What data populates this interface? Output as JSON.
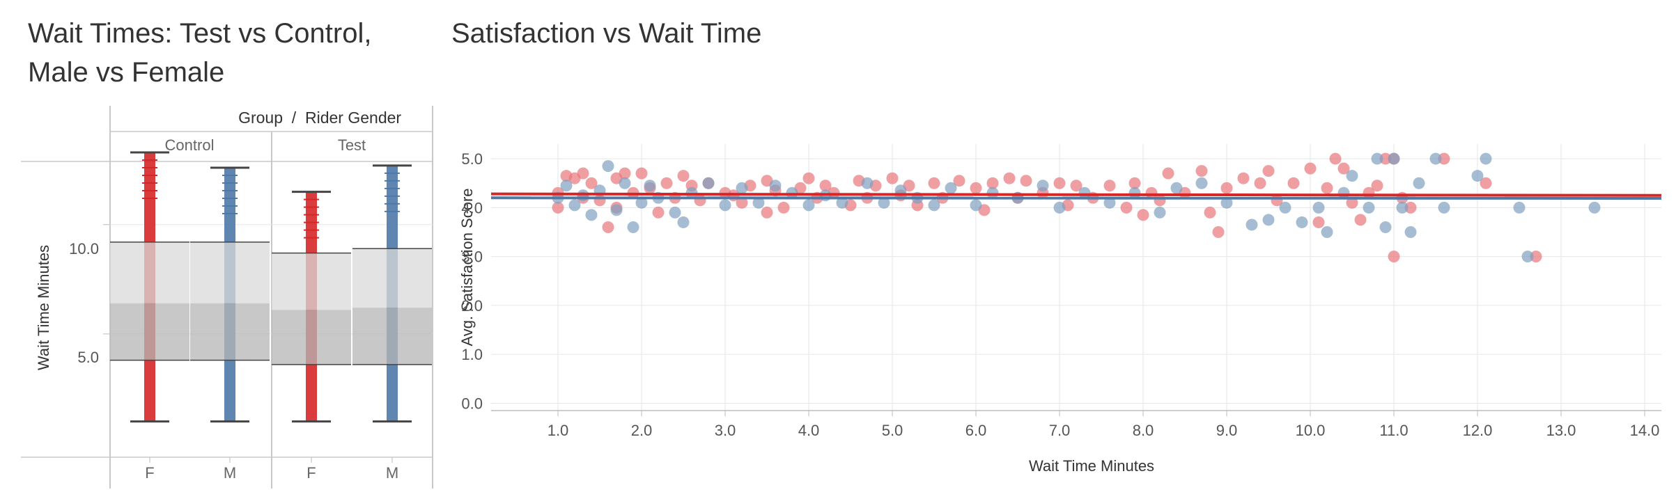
{
  "colors": {
    "female": "#d62728",
    "male": "#4e79a7",
    "grid": "#e6e6e6",
    "axis": "#bdbdbd",
    "text": "#333333",
    "tick": "#555555"
  },
  "left_title_line1": "Wait Times: Test vs Control,",
  "left_title_line2": "Male vs Female",
  "right_title": "Satisfaction vs Wait Time",
  "chart_data": [
    {
      "type": "box",
      "header": "Group",
      "header_sep": "/",
      "header2": "Rider Gender",
      "groups": [
        "Control",
        "Test"
      ],
      "genders": [
        "F",
        "M"
      ],
      "ylabel": "Wait Time Minutes",
      "yticks": [
        "5.0",
        "10.0"
      ],
      "ylim": [
        0,
        14
      ],
      "boxes": [
        {
          "group": "Control",
          "gender": "F",
          "min": 1.0,
          "q1": 3.8,
          "median": 6.4,
          "q3": 9.2,
          "max": 13.3
        },
        {
          "group": "Control",
          "gender": "M",
          "min": 1.0,
          "q1": 3.8,
          "median": 6.4,
          "q3": 9.2,
          "max": 12.6
        },
        {
          "group": "Test",
          "gender": "F",
          "min": 1.0,
          "q1": 3.6,
          "median": 6.1,
          "q3": 8.7,
          "max": 11.5
        },
        {
          "group": "Test",
          "gender": "M",
          "min": 1.0,
          "q1": 3.6,
          "median": 6.2,
          "q3": 8.9,
          "max": 12.7
        }
      ]
    },
    {
      "type": "scatter",
      "xlabel": "Wait Time Minutes",
      "ylabel": "Avg. Satisfaction Score",
      "xlim": [
        0.2,
        14.2
      ],
      "ylim": [
        -0.15,
        5.3
      ],
      "xticks": [
        "1.0",
        "2.0",
        "3.0",
        "4.0",
        "5.0",
        "6.0",
        "7.0",
        "8.0",
        "9.0",
        "10.0",
        "11.0",
        "12.0",
        "13.0",
        "14.0"
      ],
      "yticks": [
        "0.0",
        "1.0",
        "2.0",
        "3.0",
        "4.0",
        "5.0"
      ],
      "trend_lines": [
        {
          "series": "female",
          "x": [
            0.2,
            14.2
          ],
          "y": [
            4.28,
            4.25
          ]
        },
        {
          "series": "male",
          "x": [
            0.2,
            14.2
          ],
          "y": [
            4.2,
            4.19
          ]
        }
      ],
      "series": [
        {
          "key": "female",
          "points": [
            [
              1,
              4.3
            ],
            [
              1,
              4.0
            ],
            [
              1.1,
              4.65
            ],
            [
              1.2,
              4.6
            ],
            [
              1.3,
              4.7
            ],
            [
              1.3,
              4.2
            ],
            [
              1.4,
              4.5
            ],
            [
              1.5,
              4.15
            ],
            [
              1.6,
              3.6
            ],
            [
              1.7,
              4.0
            ],
            [
              1.7,
              4.6
            ],
            [
              1.8,
              4.7
            ],
            [
              1.9,
              4.3
            ],
            [
              2.0,
              4.7
            ],
            [
              2.1,
              4.4
            ],
            [
              2.2,
              3.9
            ],
            [
              2.3,
              4.5
            ],
            [
              2.4,
              4.2
            ],
            [
              2.5,
              4.65
            ],
            [
              2.6,
              4.45
            ],
            [
              2.7,
              4.15
            ],
            [
              2.8,
              4.5
            ],
            [
              3.0,
              4.3
            ],
            [
              3.1,
              4.25
            ],
            [
              3.2,
              4.1
            ],
            [
              3.3,
              4.45
            ],
            [
              3.5,
              4.55
            ],
            [
              3.5,
              3.9
            ],
            [
              3.6,
              4.35
            ],
            [
              3.7,
              4.0
            ],
            [
              3.9,
              4.4
            ],
            [
              4.0,
              4.6
            ],
            [
              4.1,
              4.2
            ],
            [
              4.2,
              4.45
            ],
            [
              4.3,
              4.3
            ],
            [
              4.5,
              4.05
            ],
            [
              4.6,
              4.55
            ],
            [
              4.7,
              4.2
            ],
            [
              4.8,
              4.45
            ],
            [
              5.0,
              4.6
            ],
            [
              5.1,
              4.25
            ],
            [
              5.2,
              4.45
            ],
            [
              5.3,
              4.05
            ],
            [
              5.5,
              4.5
            ],
            [
              5.6,
              4.2
            ],
            [
              5.8,
              4.55
            ],
            [
              6.0,
              4.4
            ],
            [
              6.1,
              3.95
            ],
            [
              6.2,
              4.5
            ],
            [
              6.4,
              4.6
            ],
            [
              6.5,
              4.2
            ],
            [
              6.6,
              4.55
            ],
            [
              6.8,
              4.3
            ],
            [
              7.0,
              4.5
            ],
            [
              7.1,
              4.05
            ],
            [
              7.2,
              4.45
            ],
            [
              7.4,
              4.2
            ],
            [
              7.6,
              4.45
            ],
            [
              7.8,
              4.0
            ],
            [
              7.9,
              4.5
            ],
            [
              8.0,
              3.85
            ],
            [
              8.1,
              4.3
            ],
            [
              8.2,
              4.15
            ],
            [
              8.3,
              4.7
            ],
            [
              8.5,
              4.3
            ],
            [
              8.7,
              4.75
            ],
            [
              8.8,
              3.9
            ],
            [
              8.9,
              3.5
            ],
            [
              9.0,
              4.4
            ],
            [
              9.2,
              4.6
            ],
            [
              9.4,
              4.5
            ],
            [
              9.5,
              4.75
            ],
            [
              9.6,
              4.15
            ],
            [
              9.8,
              4.5
            ],
            [
              10.0,
              4.8
            ],
            [
              10.1,
              3.7
            ],
            [
              10.2,
              4.4
            ],
            [
              10.3,
              5.0
            ],
            [
              10.4,
              4.8
            ],
            [
              10.5,
              4.1
            ],
            [
              10.6,
              3.75
            ],
            [
              10.7,
              4.3
            ],
            [
              10.8,
              4.45
            ],
            [
              10.9,
              5.0
            ],
            [
              11.0,
              3.0
            ],
            [
              11.0,
              5.0
            ],
            [
              11.1,
              4.2
            ],
            [
              11.2,
              4.0
            ],
            [
              11.6,
              5.0
            ],
            [
              12.1,
              4.5
            ],
            [
              12.7,
              3.0
            ]
          ]
        },
        {
          "key": "male",
          "points": [
            [
              1,
              4.2
            ],
            [
              1.1,
              4.45
            ],
            [
              1.2,
              4.05
            ],
            [
              1.3,
              4.25
            ],
            [
              1.4,
              3.85
            ],
            [
              1.5,
              4.35
            ],
            [
              1.6,
              4.85
            ],
            [
              1.7,
              3.95
            ],
            [
              1.8,
              4.5
            ],
            [
              1.9,
              3.6
            ],
            [
              2.0,
              4.1
            ],
            [
              2.1,
              4.45
            ],
            [
              2.2,
              4.2
            ],
            [
              2.4,
              3.9
            ],
            [
              2.5,
              3.7
            ],
            [
              2.6,
              4.3
            ],
            [
              2.8,
              4.5
            ],
            [
              3.0,
              4.05
            ],
            [
              3.2,
              4.4
            ],
            [
              3.4,
              4.1
            ],
            [
              3.6,
              4.45
            ],
            [
              3.8,
              4.3
            ],
            [
              4.0,
              4.05
            ],
            [
              4.2,
              4.25
            ],
            [
              4.4,
              4.1
            ],
            [
              4.7,
              4.5
            ],
            [
              4.9,
              4.1
            ],
            [
              5.1,
              4.35
            ],
            [
              5.3,
              4.2
            ],
            [
              5.5,
              4.05
            ],
            [
              5.7,
              4.4
            ],
            [
              6.0,
              4.05
            ],
            [
              6.2,
              4.3
            ],
            [
              6.5,
              4.2
            ],
            [
              6.8,
              4.45
            ],
            [
              7.0,
              4.0
            ],
            [
              7.3,
              4.3
            ],
            [
              7.6,
              4.1
            ],
            [
              7.9,
              4.3
            ],
            [
              8.2,
              3.9
            ],
            [
              8.4,
              4.4
            ],
            [
              8.7,
              4.5
            ],
            [
              9.0,
              4.1
            ],
            [
              9.3,
              3.65
            ],
            [
              9.5,
              3.75
            ],
            [
              9.7,
              4.0
            ],
            [
              9.9,
              3.7
            ],
            [
              10.1,
              4.0
            ],
            [
              10.2,
              3.5
            ],
            [
              10.4,
              4.3
            ],
            [
              10.5,
              4.65
            ],
            [
              10.7,
              4.0
            ],
            [
              10.8,
              5.0
            ],
            [
              10.9,
              3.6
            ],
            [
              11.0,
              5.0
            ],
            [
              11.1,
              4.0
            ],
            [
              11.2,
              3.5
            ],
            [
              11.3,
              4.5
            ],
            [
              11.5,
              5.0
            ],
            [
              11.6,
              4.0
            ],
            [
              12.0,
              4.65
            ],
            [
              12.1,
              5.0
            ],
            [
              12.5,
              4.0
            ],
            [
              12.6,
              3.0
            ],
            [
              13.4,
              4.0
            ]
          ]
        }
      ]
    }
  ]
}
